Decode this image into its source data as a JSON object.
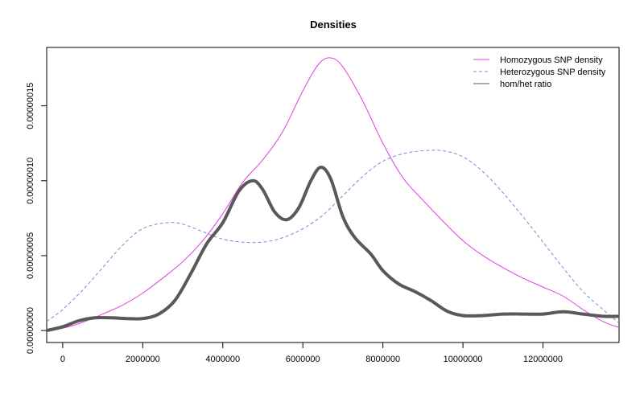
{
  "chart_data": {
    "type": "line",
    "title": "Densities",
    "xlabel": "",
    "ylabel": "",
    "xlim": [
      -400000,
      13900000
    ],
    "ylim": [
      -8e-09,
      1.89e-07
    ],
    "x_ticks": [
      {
        "value": 0,
        "label": "0"
      },
      {
        "value": 2000000,
        "label": "2000000"
      },
      {
        "value": 4000000,
        "label": "4000000"
      },
      {
        "value": 6000000,
        "label": "6000000"
      },
      {
        "value": 8000000,
        "label": "8000000"
      },
      {
        "value": 10000000,
        "label": "10000000"
      },
      {
        "value": 12000000,
        "label": "12000000"
      }
    ],
    "y_ticks": [
      {
        "value": 0,
        "label": "0.00000000"
      },
      {
        "value": 5e-08,
        "label": "0.00000005"
      },
      {
        "value": 1e-07,
        "label": "0.00000010"
      },
      {
        "value": 1.5e-07,
        "label": "0.00000015"
      }
    ],
    "grid": false,
    "legend_position": "top-right",
    "series": [
      {
        "name": "Homozygous SNP density",
        "color": "#e040e0",
        "dash": "solid",
        "width": 1,
        "points": [
          [
            -400000,
            0.0
          ],
          [
            0,
            1.5e-09
          ],
          [
            500000,
            5.5e-09
          ],
          [
            1000000,
            1.1e-08
          ],
          [
            1500000,
            1.7e-08
          ],
          [
            2000000,
            2.5e-08
          ],
          [
            2500000,
            3.5e-08
          ],
          [
            3000000,
            4.6e-08
          ],
          [
            3500000,
            6e-08
          ],
          [
            4000000,
            7.8e-08
          ],
          [
            4500000,
            9.9e-08
          ],
          [
            5000000,
            1.14e-07
          ],
          [
            5500000,
            1.33e-07
          ],
          [
            6000000,
            1.6e-07
          ],
          [
            6400000,
            1.78e-07
          ],
          [
            6700000,
            1.82e-07
          ],
          [
            7000000,
            1.76e-07
          ],
          [
            7500000,
            1.53e-07
          ],
          [
            8000000,
            1.25e-07
          ],
          [
            8500000,
            1.02e-07
          ],
          [
            9000000,
            8.7e-08
          ],
          [
            9500000,
            7.3e-08
          ],
          [
            10000000,
            6e-08
          ],
          [
            10500000,
            5e-08
          ],
          [
            11000000,
            4.2e-08
          ],
          [
            11500000,
            3.5e-08
          ],
          [
            12000000,
            2.9e-08
          ],
          [
            12500000,
            2.3e-08
          ],
          [
            13000000,
            1.4e-08
          ],
          [
            13500000,
            6e-09
          ],
          [
            13900000,
            2e-09
          ]
        ]
      },
      {
        "name": "Heterozygous SNP density",
        "color": "#6b8fd6",
        "dash": "dashed",
        "width": 1,
        "points": [
          [
            -400000,
            6e-09
          ],
          [
            0,
            1.4e-08
          ],
          [
            500000,
            2.7e-08
          ],
          [
            1000000,
            4.2e-08
          ],
          [
            1500000,
            5.7e-08
          ],
          [
            2000000,
            6.8e-08
          ],
          [
            2600000,
            7.2e-08
          ],
          [
            3000000,
            7.1e-08
          ],
          [
            3500000,
            6.6e-08
          ],
          [
            4000000,
            6.1e-08
          ],
          [
            4500000,
            5.9e-08
          ],
          [
            5000000,
            5.9e-08
          ],
          [
            5500000,
            6.2e-08
          ],
          [
            6000000,
            6.8e-08
          ],
          [
            6500000,
            7.7e-08
          ],
          [
            7000000,
            9e-08
          ],
          [
            7500000,
            1.03e-07
          ],
          [
            8000000,
            1.13e-07
          ],
          [
            8500000,
            1.18e-07
          ],
          [
            9000000,
            1.2e-07
          ],
          [
            9500000,
            1.2e-07
          ],
          [
            10000000,
            1.16e-07
          ],
          [
            10500000,
            1.06e-07
          ],
          [
            11000000,
            9.2e-08
          ],
          [
            11500000,
            7.6e-08
          ],
          [
            12000000,
            5.9e-08
          ],
          [
            12500000,
            4.2e-08
          ],
          [
            13000000,
            2.6e-08
          ],
          [
            13500000,
            1.4e-08
          ],
          [
            13900000,
            5e-09
          ]
        ]
      },
      {
        "name": "hom/het ratio",
        "color": "#595959",
        "dash": "solid",
        "width": 4,
        "points": [
          [
            -400000,
            0.0
          ],
          [
            0,
            2.5e-09
          ],
          [
            400000,
            6.5e-09
          ],
          [
            800000,
            8.5e-09
          ],
          [
            1200000,
            8.5e-09
          ],
          [
            1600000,
            8e-09
          ],
          [
            2000000,
            8e-09
          ],
          [
            2400000,
            1.1e-08
          ],
          [
            2800000,
            2e-08
          ],
          [
            3200000,
            3.8e-08
          ],
          [
            3600000,
            5.8e-08
          ],
          [
            4000000,
            7.2e-08
          ],
          [
            4400000,
            9.3e-08
          ],
          [
            4750000,
            1e-07
          ],
          [
            5000000,
            9.4e-08
          ],
          [
            5300000,
            7.9e-08
          ],
          [
            5600000,
            7.4e-08
          ],
          [
            5900000,
            8.2e-08
          ],
          [
            6200000,
            1e-07
          ],
          [
            6450000,
            1.09e-07
          ],
          [
            6700000,
            1.01e-07
          ],
          [
            7000000,
            7.6e-08
          ],
          [
            7300000,
            6.2e-08
          ],
          [
            7700000,
            5.1e-08
          ],
          [
            8000000,
            4e-08
          ],
          [
            8400000,
            3.1e-08
          ],
          [
            8800000,
            2.6e-08
          ],
          [
            9200000,
            2e-08
          ],
          [
            9600000,
            1.3e-08
          ],
          [
            10000000,
            1e-08
          ],
          [
            10500000,
            1e-08
          ],
          [
            11000000,
            1.1e-08
          ],
          [
            11500000,
            1.1e-08
          ],
          [
            12000000,
            1.1e-08
          ],
          [
            12500000,
            1.25e-08
          ],
          [
            13000000,
            1.1e-08
          ],
          [
            13500000,
            9.5e-09
          ],
          [
            13900000,
            9.5e-09
          ]
        ]
      }
    ]
  }
}
